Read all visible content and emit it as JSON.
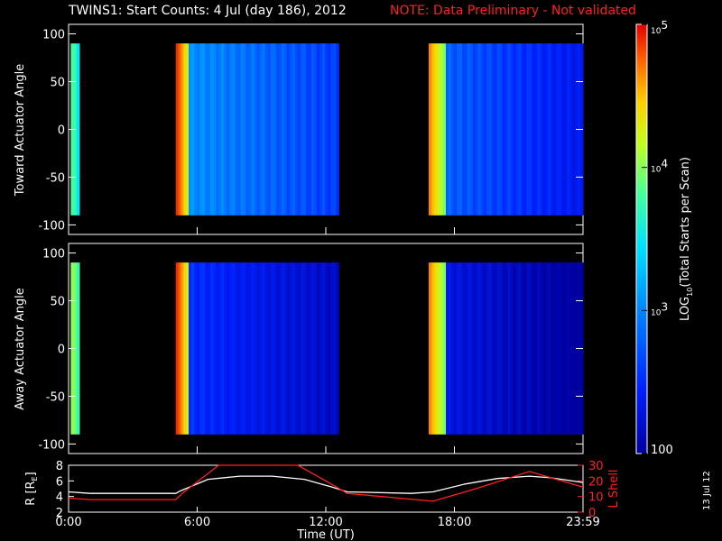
{
  "title": {
    "main": "TWINS1: Start Counts:  4 Jul (day 186), 2012",
    "note": "NOTE: Data Preliminary - Not validated"
  },
  "date_stamp": "13 Jul 12",
  "colors": {
    "background": "#000000",
    "note_red": "#ff2020",
    "r_line": "#ffffff",
    "lshell_line": "#ff2020"
  },
  "chart_data": [
    {
      "type": "heatmap",
      "panel": "top",
      "ylabel": "Toward Actuator Angle",
      "ylim": [
        -110,
        110
      ],
      "yticks": [
        "100",
        "50",
        "0",
        "-50",
        "-100"
      ],
      "xlim_hours": [
        0,
        24
      ],
      "color_scale": "log",
      "data_blocks": [
        {
          "t_start_h": 0.1,
          "t_end_h": 0.5,
          "angle_range": [
            -90,
            90
          ],
          "log10_counts": 3.6
        },
        {
          "t_start_h": 5.0,
          "t_end_h": 5.6,
          "angle_range": [
            -90,
            90
          ],
          "log10_counts": 4.8
        },
        {
          "t_start_h": 5.6,
          "t_end_h": 12.6,
          "angle_range": [
            -90,
            90
          ],
          "log10_counts": 2.9
        },
        {
          "t_start_h": 16.8,
          "t_end_h": 17.6,
          "angle_range": [
            -90,
            90
          ],
          "log10_counts": 4.5
        },
        {
          "t_start_h": 17.6,
          "t_end_h": 24.0,
          "angle_range": [
            -90,
            90
          ],
          "log10_counts": 2.7
        }
      ]
    },
    {
      "type": "heatmap",
      "panel": "middle",
      "ylabel": "Away Actuator Angle",
      "ylim": [
        -110,
        110
      ],
      "yticks": [
        "100",
        "50",
        "0",
        "-50",
        "-100"
      ],
      "xlim_hours": [
        0,
        24
      ],
      "color_scale": "log",
      "data_blocks": [
        {
          "t_start_h": 0.1,
          "t_end_h": 0.5,
          "angle_range": [
            -90,
            90
          ],
          "log10_counts": 3.8
        },
        {
          "t_start_h": 5.0,
          "t_end_h": 5.6,
          "angle_range": [
            -90,
            90
          ],
          "log10_counts": 4.8
        },
        {
          "t_start_h": 5.6,
          "t_end_h": 12.6,
          "angle_range": [
            -90,
            90
          ],
          "log10_counts": 2.5
        },
        {
          "t_start_h": 16.8,
          "t_end_h": 17.6,
          "angle_range": [
            -90,
            90
          ],
          "log10_counts": 4.5
        },
        {
          "t_start_h": 17.6,
          "t_end_h": 24.0,
          "angle_range": [
            -90,
            90
          ],
          "log10_counts": 2.3
        }
      ]
    },
    {
      "type": "colorbar",
      "label": "LOG",
      "label_sub": "10",
      "label_rest": "(Total Starts per Scan)",
      "range": [
        100,
        100000
      ],
      "ticks": [
        {
          "base": "10",
          "exp": "5",
          "log10": 5
        },
        {
          "base": "10",
          "exp": "4",
          "log10": 4
        },
        {
          "base": "10",
          "exp": "3",
          "log10": 3
        },
        {
          "base": "100",
          "exp": "",
          "log10": 2
        }
      ]
    },
    {
      "type": "line",
      "panel": "bottom",
      "xlabel": "Time (UT)",
      "xticks": [
        "0:00",
        "6:00",
        "12:00",
        "18:00",
        "23:59"
      ],
      "left_axis": {
        "label": "R [R",
        "label_sub": "E",
        "label_end": "]",
        "ylim": [
          2,
          8
        ],
        "ticks": [
          "8",
          "6",
          "4",
          "2"
        ]
      },
      "right_axis": {
        "label": "L Shell",
        "ylim": [
          0,
          30
        ],
        "ticks": [
          "30",
          "20",
          "10",
          "0"
        ]
      },
      "series": [
        {
          "axis": "left",
          "x": [
            0,
            1,
            5,
            5.2,
            6.5,
            8,
            9.5,
            11,
            12.3,
            13,
            16,
            17,
            18.5,
            20,
            21.5,
            22.5,
            24
          ],
          "y": [
            4.6,
            4.4,
            4.4,
            4.7,
            6.2,
            6.6,
            6.6,
            6.2,
            5.2,
            4.6,
            4.4,
            4.6,
            5.6,
            6.3,
            6.6,
            6.4,
            5.8
          ]
        },
        {
          "axis": "right",
          "x": [
            0,
            1,
            5,
            5.3,
            7.0,
            10.7,
            12.0,
            13.0,
            17.0,
            19.0,
            21.5,
            23.0,
            24
          ],
          "y": [
            9,
            8,
            8,
            12,
            30,
            30,
            20,
            12,
            7,
            15,
            26,
            20,
            16
          ]
        }
      ]
    }
  ]
}
